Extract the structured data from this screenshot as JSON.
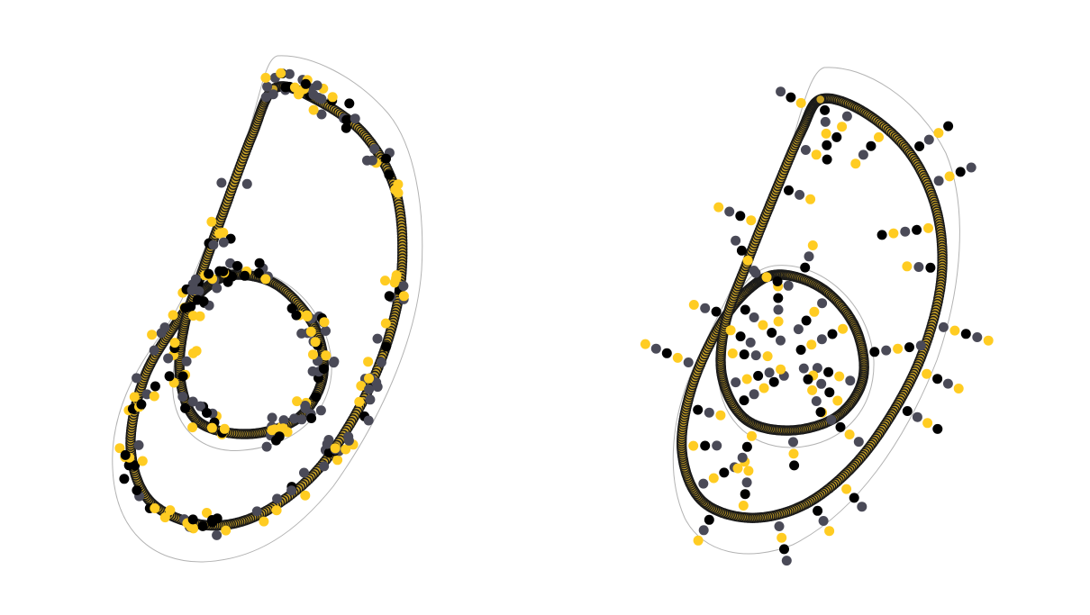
{
  "figure": {
    "panels": [
      {
        "name": "left-panel",
        "shape": "curve-with-inner-loop",
        "outline": "thin-gray-envelope",
        "point_pattern": "clustered-along-curve"
      },
      {
        "name": "right-panel",
        "shape": "curve-with-inner-loop",
        "outline": "thin-gray-envelope",
        "point_pattern": "radial-spokes"
      }
    ],
    "colors": {
      "background": "#ffffff",
      "envelope": "#b3b3b3",
      "curve_outline": "#1a1a1a",
      "curve_fill": "#c9a227",
      "point_yellow": "#ffcc22",
      "point_black": "#000000",
      "point_gray": "#4a4a57"
    }
  }
}
